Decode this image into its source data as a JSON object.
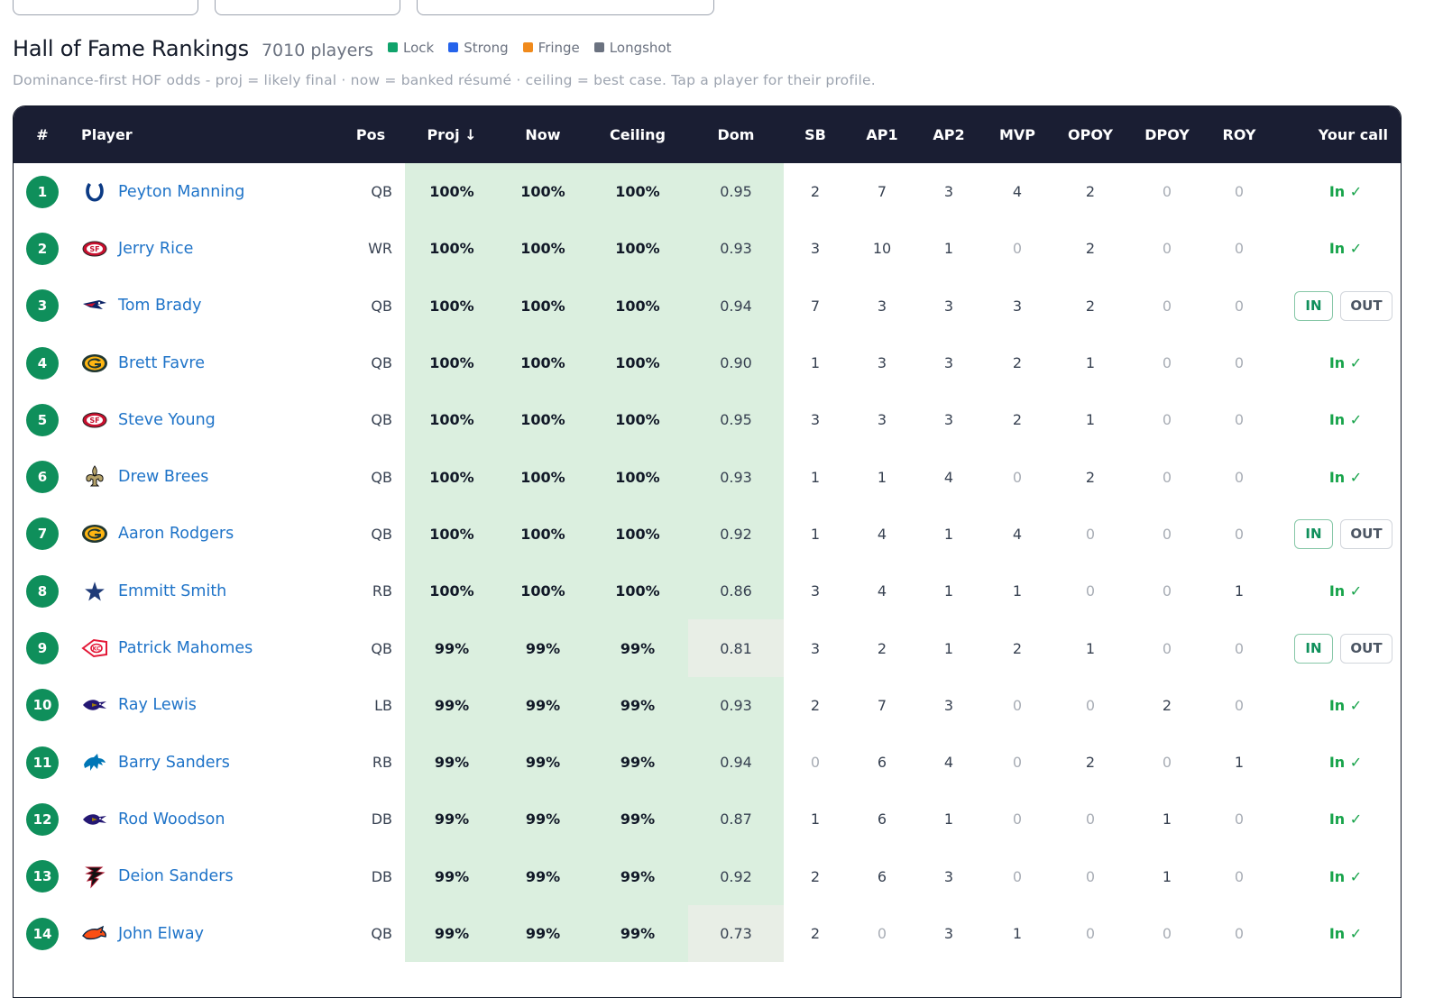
{
  "title": "Hall of Fame Rankings",
  "player_count": "7010 players",
  "legend": [
    {
      "label": "Lock",
      "color": "#10a36b"
    },
    {
      "label": "Strong",
      "color": "#2563eb"
    },
    {
      "label": "Fringe",
      "color": "#f08a1c"
    },
    {
      "label": "Longshot",
      "color": "#6b7280"
    }
  ],
  "subtitle": "Dominance-first HOF odds  - proj = likely final · now = banked résumé · ceiling = best case. Tap a player for their profile.",
  "columns": [
    "#",
    "Player",
    "Pos",
    "Proj ↓",
    "Now",
    "Ceiling",
    "Dom",
    "SB",
    "AP1",
    "AP2",
    "MVP",
    "OPOY",
    "DPOY",
    "ROY",
    "Your call"
  ],
  "call_labels": {
    "in_text": "In ✓",
    "in_button": "IN",
    "out_button": "OUT"
  },
  "players": [
    {
      "rank": "1",
      "name": "Peyton Manning",
      "team_icon": "colts-horseshoe-icon",
      "pos": "QB",
      "proj": "100%",
      "now": "100%",
      "ceiling": "100%",
      "dom": "0.95",
      "sb": "2",
      "ap1": "7",
      "ap2": "3",
      "mvp": "4",
      "opoy": "2",
      "dpoy": "0",
      "roy": "0",
      "call": "in"
    },
    {
      "rank": "2",
      "name": "Jerry Rice",
      "team_icon": "49ers-logo-icon",
      "pos": "WR",
      "proj": "100%",
      "now": "100%",
      "ceiling": "100%",
      "dom": "0.93",
      "sb": "3",
      "ap1": "10",
      "ap2": "1",
      "mvp": "0",
      "opoy": "2",
      "dpoy": "0",
      "roy": "0",
      "call": "in"
    },
    {
      "rank": "3",
      "name": "Tom Brady",
      "team_icon": "patriots-logo-icon",
      "pos": "QB",
      "proj": "100%",
      "now": "100%",
      "ceiling": "100%",
      "dom": "0.94",
      "sb": "7",
      "ap1": "3",
      "ap2": "3",
      "mvp": "3",
      "opoy": "2",
      "dpoy": "0",
      "roy": "0",
      "call": "buttons"
    },
    {
      "rank": "4",
      "name": "Brett Favre",
      "team_icon": "packers-g-icon",
      "pos": "QB",
      "proj": "100%",
      "now": "100%",
      "ceiling": "100%",
      "dom": "0.90",
      "sb": "1",
      "ap1": "3",
      "ap2": "3",
      "mvp": "2",
      "opoy": "1",
      "dpoy": "0",
      "roy": "0",
      "call": "in"
    },
    {
      "rank": "5",
      "name": "Steve Young",
      "team_icon": "49ers-logo-icon",
      "pos": "QB",
      "proj": "100%",
      "now": "100%",
      "ceiling": "100%",
      "dom": "0.95",
      "sb": "3",
      "ap1": "3",
      "ap2": "3",
      "mvp": "2",
      "opoy": "1",
      "dpoy": "0",
      "roy": "0",
      "call": "in"
    },
    {
      "rank": "6",
      "name": "Drew Brees",
      "team_icon": "saints-fleur-icon",
      "pos": "QB",
      "proj": "100%",
      "now": "100%",
      "ceiling": "100%",
      "dom": "0.93",
      "sb": "1",
      "ap1": "1",
      "ap2": "4",
      "mvp": "0",
      "opoy": "2",
      "dpoy": "0",
      "roy": "0",
      "call": "in"
    },
    {
      "rank": "7",
      "name": "Aaron Rodgers",
      "team_icon": "packers-g-icon",
      "pos": "QB",
      "proj": "100%",
      "now": "100%",
      "ceiling": "100%",
      "dom": "0.92",
      "sb": "1",
      "ap1": "4",
      "ap2": "1",
      "mvp": "4",
      "opoy": "0",
      "dpoy": "0",
      "roy": "0",
      "call": "buttons"
    },
    {
      "rank": "8",
      "name": "Emmitt Smith",
      "team_icon": "cowboys-star-icon",
      "pos": "RB",
      "proj": "100%",
      "now": "100%",
      "ceiling": "100%",
      "dom": "0.86",
      "sb": "3",
      "ap1": "4",
      "ap2": "1",
      "mvp": "1",
      "opoy": "0",
      "dpoy": "0",
      "roy": "1",
      "call": "in"
    },
    {
      "rank": "9",
      "name": "Patrick Mahomes",
      "team_icon": "chiefs-arrowhead-icon",
      "pos": "QB",
      "proj": "99%",
      "now": "99%",
      "ceiling": "99%",
      "dom": "0.81",
      "sb": "3",
      "ap1": "2",
      "ap2": "1",
      "mvp": "2",
      "opoy": "1",
      "dpoy": "0",
      "roy": "0",
      "call": "buttons"
    },
    {
      "rank": "10",
      "name": "Ray Lewis",
      "team_icon": "ravens-logo-icon",
      "pos": "LB",
      "proj": "99%",
      "now": "99%",
      "ceiling": "99%",
      "dom": "0.93",
      "sb": "2",
      "ap1": "7",
      "ap2": "3",
      "mvp": "0",
      "opoy": "0",
      "dpoy": "2",
      "roy": "0",
      "call": "in"
    },
    {
      "rank": "11",
      "name": "Barry Sanders",
      "team_icon": "lions-logo-icon",
      "pos": "RB",
      "proj": "99%",
      "now": "99%",
      "ceiling": "99%",
      "dom": "0.94",
      "sb": "0",
      "ap1": "6",
      "ap2": "4",
      "mvp": "0",
      "opoy": "2",
      "dpoy": "0",
      "roy": "1",
      "call": "in"
    },
    {
      "rank": "12",
      "name": "Rod Woodson",
      "team_icon": "ravens-logo-icon",
      "pos": "DB",
      "proj": "99%",
      "now": "99%",
      "ceiling": "99%",
      "dom": "0.87",
      "sb": "1",
      "ap1": "6",
      "ap2": "1",
      "mvp": "0",
      "opoy": "0",
      "dpoy": "1",
      "roy": "0",
      "call": "in"
    },
    {
      "rank": "13",
      "name": "Deion Sanders",
      "team_icon": "falcons-logo-icon",
      "pos": "DB",
      "proj": "99%",
      "now": "99%",
      "ceiling": "99%",
      "dom": "0.92",
      "sb": "2",
      "ap1": "6",
      "ap2": "3",
      "mvp": "0",
      "opoy": "0",
      "dpoy": "1",
      "roy": "0",
      "call": "in"
    },
    {
      "rank": "14",
      "name": "John Elway",
      "team_icon": "broncos-logo-icon",
      "pos": "QB",
      "proj": "99%",
      "now": "99%",
      "ceiling": "99%",
      "dom": "0.73",
      "sb": "2",
      "ap1": "0",
      "ap2": "3",
      "mvp": "1",
      "opoy": "0",
      "dpoy": "0",
      "roy": "0",
      "call": "in"
    }
  ]
}
